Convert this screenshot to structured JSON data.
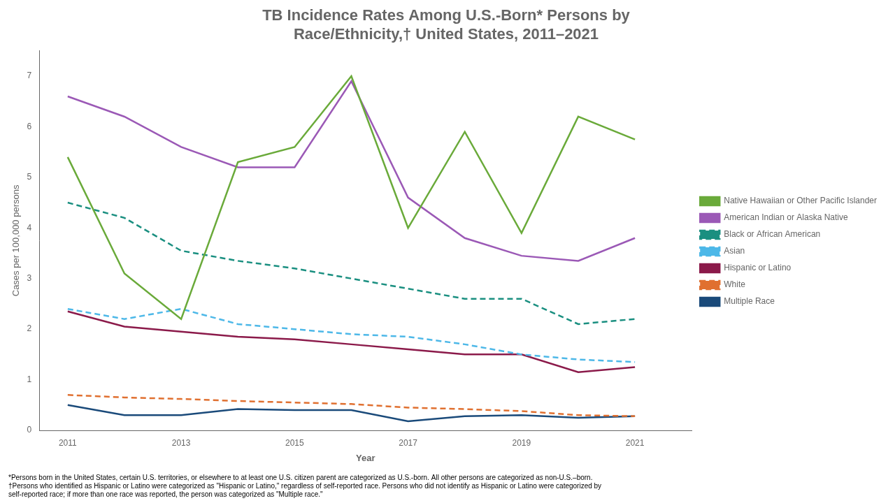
{
  "chart_data": {
    "type": "line",
    "title": [
      "TB Incidence Rates Among U.S.-Born* Persons by",
      "Race/Ethnicity,† United States, 2011–2021"
    ],
    "x": [
      2011,
      2012,
      2013,
      2014,
      2015,
      2016,
      2017,
      2018,
      2019,
      2020,
      2021
    ],
    "series": [
      {
        "name": "Native Hawaiian or Other Pacific Islander",
        "color": "#6aaa3a",
        "line_style": "solid",
        "values": [
          5.4,
          3.1,
          2.2,
          5.3,
          5.6,
          7.0,
          4.0,
          5.9,
          3.9,
          6.2,
          5.75
        ]
      },
      {
        "name": "American Indian or Alaska Native",
        "color": "#9b59b6",
        "line_style": "solid",
        "values": [
          6.6,
          6.2,
          5.6,
          5.2,
          5.2,
          6.9,
          4.6,
          3.8,
          3.45,
          3.35,
          3.8
        ]
      },
      {
        "name": "Black or African American",
        "color": "#1a8f80",
        "line_style": "dashed",
        "values": [
          4.5,
          4.2,
          3.55,
          3.35,
          3.2,
          3.0,
          2.8,
          2.6,
          2.6,
          2.1,
          2.2
        ]
      },
      {
        "name": "Asian",
        "color": "#4db8e8",
        "line_style": "dashed",
        "values": [
          2.4,
          2.2,
          2.4,
          2.1,
          2.0,
          1.9,
          1.85,
          1.7,
          1.5,
          1.4,
          1.35
        ]
      },
      {
        "name": "Hispanic or Latino",
        "color": "#8b1a4a",
        "line_style": "solid",
        "values": [
          2.35,
          2.05,
          1.95,
          1.85,
          1.8,
          1.7,
          1.6,
          1.5,
          1.5,
          1.15,
          1.25
        ]
      },
      {
        "name": "White",
        "color": "#e07030",
        "line_style": "dashed",
        "values": [
          0.7,
          0.65,
          0.62,
          0.58,
          0.55,
          0.52,
          0.45,
          0.42,
          0.38,
          0.3,
          0.28
        ]
      },
      {
        "name": "Multiple Race",
        "color": "#1a4a7a",
        "line_style": "solid",
        "values": [
          0.5,
          0.3,
          0.3,
          0.42,
          0.4,
          0.4,
          0.18,
          0.28,
          0.3,
          0.25,
          0.28
        ]
      }
    ],
    "x_label": "Year",
    "y_label": "Cases per 100,000 persons",
    "xlim": [
      2010.5,
      2022.0
    ],
    "xticks": [
      2011,
      2013,
      2015,
      2017,
      2019,
      2021
    ],
    "ylim": [
      0,
      7.5
    ],
    "yticks": [
      0,
      1,
      2,
      3,
      4,
      5,
      6,
      7
    ],
    "grid": false,
    "legend": "right",
    "annotations": [
      "*Persons born in the United States, certain U.S. territories, or elsewhere to at least one U.S. citizen parent are categorized as U.S.-born. All other persons are categorized as non-U.S.–born.",
      "†Persons who identified as Hispanic or Latino were categorized as \"Hispanic or Latino,\" regardless of self-reported race. Persons who did not identify as Hispanic or Latino were categorized by",
      "self-reported race; if more than one race was reported, the person was categorized as \"Multiple race.\""
    ]
  }
}
